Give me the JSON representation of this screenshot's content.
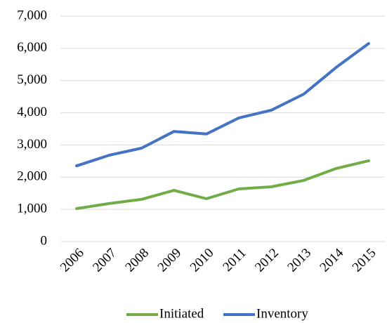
{
  "chart_data": {
    "type": "line",
    "categories": [
      "2006",
      "2007",
      "2008",
      "2009",
      "2010",
      "2011",
      "2012",
      "2013",
      "2014",
      "2015"
    ],
    "series": [
      {
        "name": "Initiated",
        "color": "#70ad47",
        "values": [
          1025,
          1180,
          1310,
          1590,
          1330,
          1635,
          1700,
          1900,
          2270,
          2510
        ]
      },
      {
        "name": "Inventory",
        "color": "#4472c4",
        "values": [
          2350,
          2680,
          2900,
          3420,
          3340,
          3840,
          4080,
          4580,
          5410,
          6150
        ]
      }
    ],
    "ylim": [
      0,
      7000
    ],
    "yticks": [
      0,
      {
        "value": 1000,
        "label": "1,000"
      },
      {
        "value": 2000,
        "label": "2,000"
      },
      {
        "value": 3000,
        "label": "3,000"
      },
      {
        "value": 4000,
        "label": "4,000"
      },
      {
        "value": 5000,
        "label": "5,000"
      },
      {
        "value": 6000,
        "label": "6,000"
      },
      {
        "value": 7000,
        "label": "7,000"
      }
    ],
    "grid": true,
    "legend": "bottom"
  }
}
